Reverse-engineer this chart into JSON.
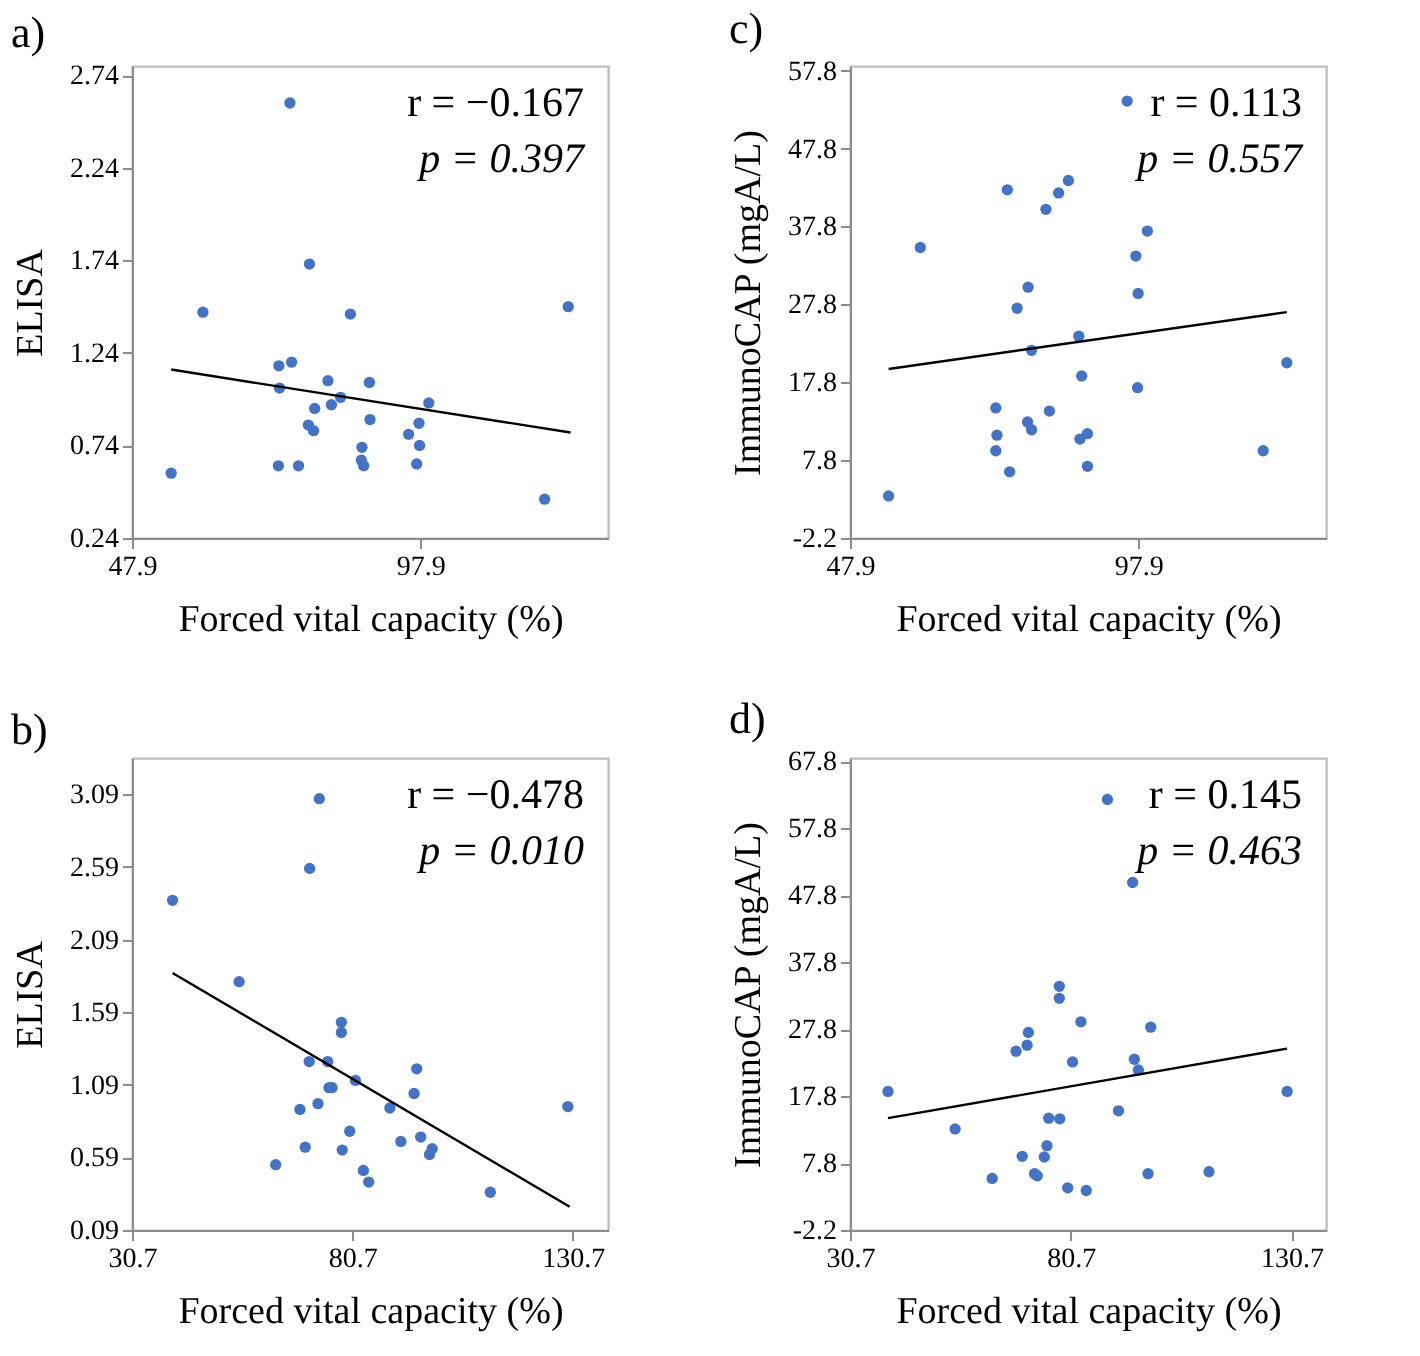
{
  "chart_data": [
    {
      "type": "scatter",
      "title": "a)",
      "xlabel": "Forced vital capacity (%)",
      "ylabel": "ELISA",
      "xlim": [
        47.9,
        130.5
      ],
      "ylim": [
        0.24,
        2.79
      ],
      "xticks": [
        47.9,
        97.9
      ],
      "yticks": [
        0.24,
        0.74,
        1.24,
        1.74,
        2.24,
        2.74
      ],
      "annotations": [
        "r = −0.167",
        "p = 0.397"
      ],
      "series": [
        {
          "type": "scatter",
          "marker": "circle",
          "color": "#4472c4",
          "x": [
            54.7,
            60.2,
            73.4,
            73.5,
            73.3,
            75.3,
            75.6,
            76.8,
            78.7,
            78.5,
            79.4,
            79.6,
            81.9,
            82.5,
            84.1,
            85.8,
            87.8,
            87.7,
            88.1,
            89.1,
            89.2,
            95.9,
            97.7,
            97.8,
            97.3,
            99.4,
            119.5,
            123.6
          ],
          "values": [
            0.59,
            1.46,
            1.17,
            1.05,
            0.63,
            2.59,
            1.19,
            0.63,
            1.72,
            0.85,
            0.82,
            0.94,
            1.09,
            0.96,
            1.0,
            1.45,
            0.73,
            0.66,
            0.63,
            1.08,
            0.88,
            0.8,
            0.86,
            0.74,
            0.64,
            0.97,
            0.45,
            1.49
          ]
        },
        {
          "type": "line",
          "color": "#000000",
          "x": [
            54.7,
            124.0
          ],
          "values": [
            1.15,
            0.81
          ]
        }
      ]
    },
    {
      "type": "scatter",
      "title": "c)",
      "xlabel": "Forced vital capacity (%)",
      "ylabel": "ImmunoCAP (mgA/L)",
      "xlim": [
        47.9,
        130.5
      ],
      "ylim": [
        -2.2,
        58.4
      ],
      "xticks": [
        47.9,
        97.9
      ],
      "yticks": [
        -2.2,
        7.8,
        17.8,
        27.8,
        37.8,
        47.8,
        57.8
      ],
      "annotations": [
        "r = 0.113",
        "p = 0.557"
      ],
      "series": [
        {
          "type": "scatter",
          "marker": "circle",
          "color": "#4472c4",
          "x": [
            54.6,
            60.1,
            75.2,
            73.2,
            73.4,
            73.2,
            75.6,
            76.9,
            78.8,
            79.4,
            78.7,
            79.4,
            81.9,
            82.5,
            84.1,
            85.8,
            87.6,
            88.1,
            87.8,
            89.1,
            89.1,
            96.0,
            97.5,
            97.9,
            97.8,
            99.5,
            119.6,
            123.7
          ],
          "values": [
            3.2,
            35.1,
            42.5,
            14.5,
            11.0,
            9.0,
            6.3,
            27.3,
            30.0,
            21.9,
            12.7,
            11.7,
            40.0,
            14.1,
            42.1,
            43.7,
            23.7,
            18.6,
            10.5,
            11.2,
            7.0,
            53.9,
            34.0,
            29.2,
            17.1,
            37.2,
            9.0,
            20.3
          ]
        },
        {
          "type": "line",
          "color": "#000000",
          "x": [
            54.6,
            123.7
          ],
          "values": [
            19.5,
            26.8
          ]
        }
      ]
    },
    {
      "type": "scatter",
      "title": "b)",
      "xlabel": "Forced vital capacity (%)",
      "ylabel": "ELISA",
      "xlim": [
        30.7,
        138.7
      ],
      "ylim": [
        0.09,
        3.34
      ],
      "xticks": [
        30.7,
        80.7,
        130.7
      ],
      "yticks": [
        0.09,
        0.59,
        1.09,
        1.59,
        2.09,
        2.59,
        3.09
      ],
      "annotations": [
        "r = −0.478",
        "p = 0.010"
      ],
      "series": [
        {
          "type": "scatter",
          "marker": "circle",
          "color": "#4472c4",
          "x": [
            39.9,
            55.0,
            63.3,
            68.8,
            70.0,
            71.0,
            70.9,
            72.9,
            73.2,
            75.1,
            75.4,
            76.1,
            78.2,
            78.2,
            78.4,
            80.1,
            81.4,
            83.2,
            84.4,
            89.2,
            91.7,
            94.7,
            95.3,
            96.2,
            98.2,
            98.8,
            112.0,
            129.6
          ],
          "values": [
            2.36,
            1.8,
            0.54,
            0.92,
            0.66,
            2.58,
            1.25,
            0.96,
            3.06,
            1.25,
            1.07,
            1.07,
            1.52,
            1.45,
            0.64,
            0.77,
            1.12,
            0.5,
            0.42,
            0.93,
            0.7,
            1.03,
            1.2,
            0.73,
            0.61,
            0.65,
            0.35,
            0.94
          ]
        },
        {
          "type": "line",
          "color": "#000000",
          "x": [
            39.9,
            130.0
          ],
          "values": [
            1.86,
            0.25
          ]
        }
      ]
    },
    {
      "type": "scatter",
      "title": "d)",
      "xlabel": "Forced vital capacity (%)",
      "ylabel": "ImmunoCAP (mgA/L)",
      "xlim": [
        30.7,
        138.5
      ],
      "ylim": [
        -2.2,
        68.3
      ],
      "xticks": [
        30.7,
        80.7,
        130.7
      ],
      "yticks": [
        -2.2,
        7.8,
        17.8,
        27.8,
        37.8,
        47.8,
        57.8,
        67.8
      ],
      "annotations": [
        "r = 0.145",
        "p = 0.463"
      ],
      "series": [
        {
          "type": "scatter",
          "marker": "circle",
          "color": "#4472c4",
          "x": [
            39.3,
            54.5,
            62.9,
            68.3,
            69.7,
            70.8,
            71.1,
            72.5,
            73.1,
            74.7,
            75.3,
            75.7,
            78.1,
            78.1,
            78.2,
            80.0,
            81.1,
            83.0,
            84.2,
            89.0,
            91.5,
            94.7,
            95.1,
            96.0,
            98.2,
            98.8,
            112.0,
            129.7
          ],
          "values": [
            18.5,
            12.9,
            5.5,
            24.5,
            8.8,
            25.4,
            27.3,
            6.2,
            5.9,
            8.7,
            10.4,
            14.5,
            34.2,
            32.4,
            14.4,
            4.1,
            22.9,
            28.9,
            3.7,
            62.1,
            15.6,
            49.7,
            23.3,
            21.7,
            6.2,
            28.1,
            6.5,
            18.5
          ]
        },
        {
          "type": "line",
          "color": "#000000",
          "x": [
            39.3,
            129.7
          ],
          "values": [
            14.5,
            24.9
          ]
        }
      ]
    }
  ]
}
